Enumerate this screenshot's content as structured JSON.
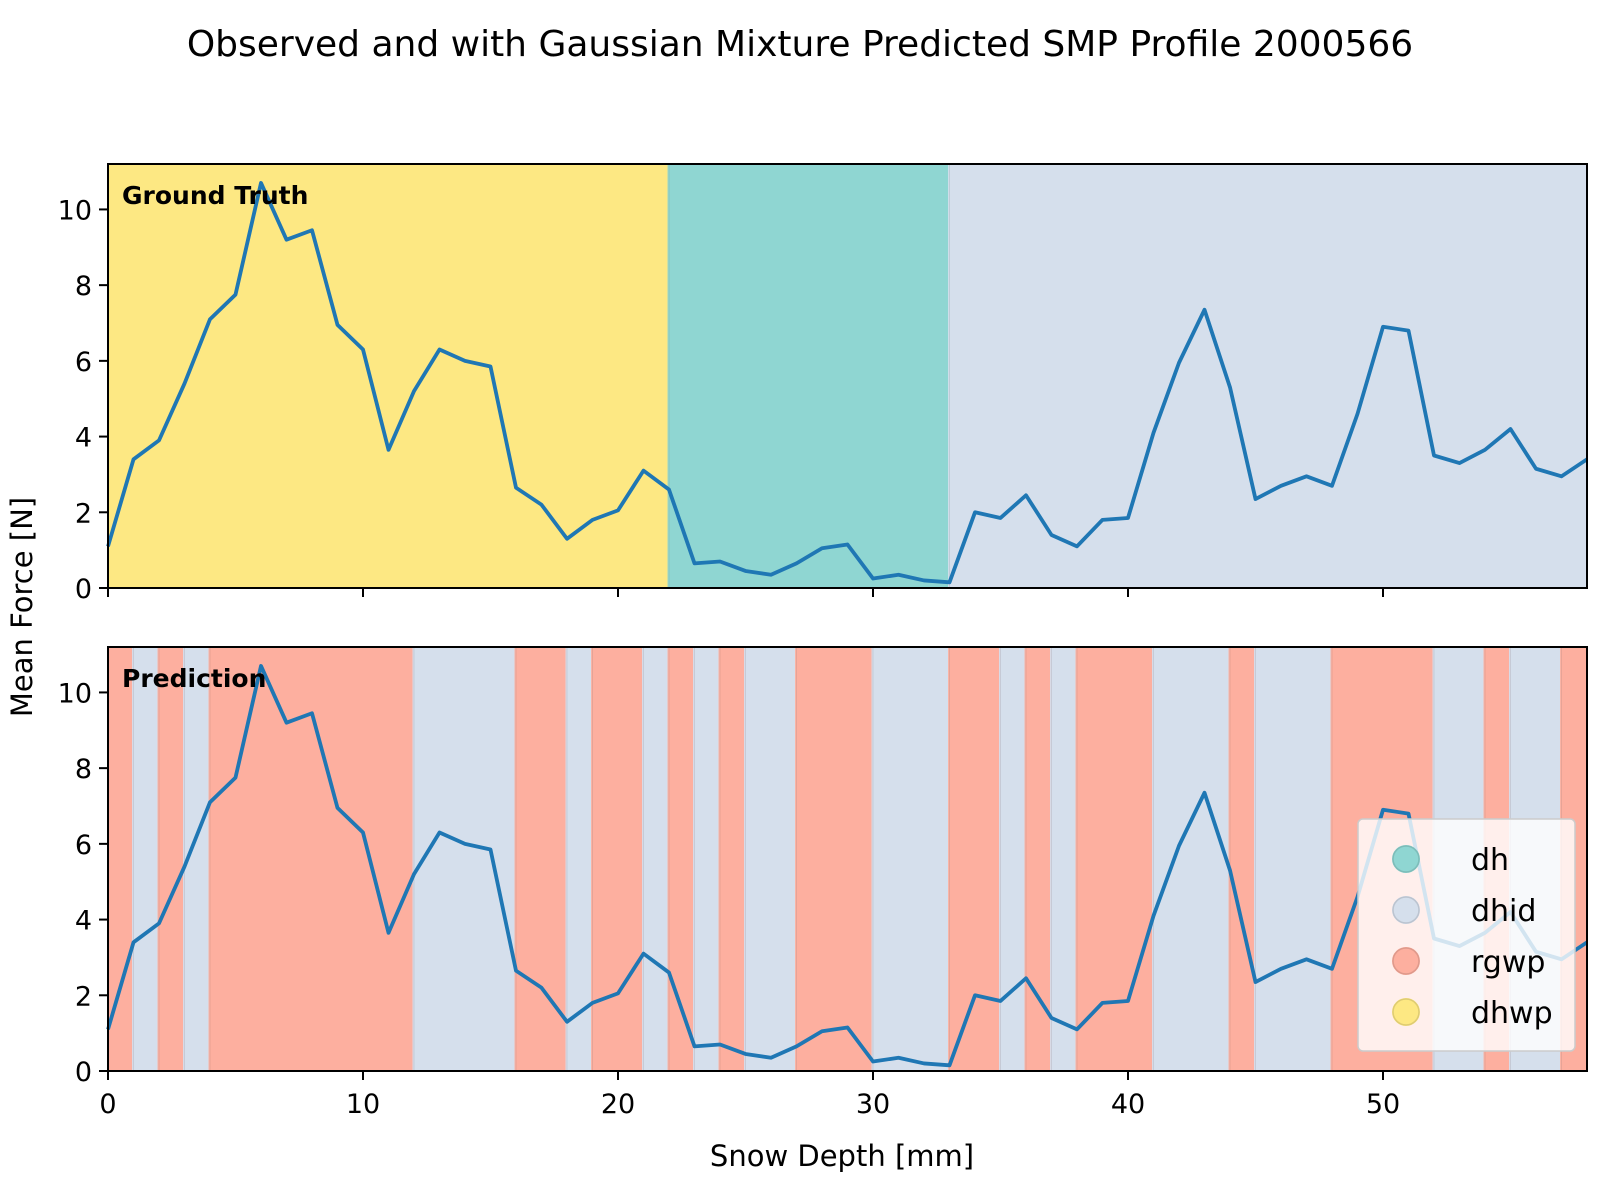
{
  "figure": {
    "title": "Observed and with Gaussian Mixture Predicted SMP Profile 2000566"
  },
  "colors": {
    "dh": "#8fd6d2",
    "dhid": "#d5dfec",
    "rgwp": "#fdaf9f",
    "dhwp": "#fde883",
    "line": "#1f77b4"
  },
  "chart_data": {
    "type": "line",
    "xlabel": "Snow Depth [mm]",
    "ylabel": "Mean Force [N]",
    "xlim": [
      0,
      58
    ],
    "ylim": [
      0,
      11.2
    ],
    "xticks": [
      0,
      10,
      20,
      30,
      40,
      50
    ],
    "yticks": [
      0,
      2,
      4,
      6,
      8,
      10
    ],
    "x": [
      0,
      1,
      2,
      3,
      4,
      5,
      6,
      7,
      8,
      9,
      10,
      11,
      12,
      13,
      14,
      15,
      16,
      17,
      18,
      19,
      20,
      21,
      22,
      23,
      24,
      25,
      26,
      27,
      28,
      29,
      30,
      31,
      32,
      33,
      34,
      35,
      36,
      37,
      38,
      39,
      40,
      41,
      42,
      43,
      44,
      45,
      46,
      47,
      48,
      49,
      50,
      51,
      52,
      53,
      54,
      55,
      56,
      57,
      58
    ],
    "y": [
      1.1,
      3.4,
      3.9,
      5.4,
      7.1,
      7.75,
      10.7,
      9.2,
      9.45,
      6.95,
      6.3,
      3.65,
      5.2,
      6.3,
      6.0,
      5.85,
      2.65,
      2.2,
      1.3,
      1.8,
      2.05,
      3.1,
      2.6,
      0.65,
      0.7,
      0.45,
      0.35,
      0.65,
      1.05,
      1.15,
      0.25,
      0.35,
      0.2,
      0.15,
      2.0,
      1.85,
      2.45,
      1.4,
      1.1,
      1.8,
      1.85,
      4.1,
      5.95,
      7.35,
      5.3,
      2.35,
      2.7,
      2.95,
      2.7,
      4.6,
      6.9,
      6.8,
      3.5,
      3.3,
      3.65,
      4.2,
      3.15,
      2.95,
      3.4
    ],
    "panels": [
      {
        "label": "Ground Truth",
        "segments": [
          {
            "start": 0,
            "end": 22,
            "label": "dhwp"
          },
          {
            "start": 22,
            "end": 33,
            "label": "dh"
          },
          {
            "start": 33,
            "end": 58,
            "label": "dhid"
          }
        ]
      },
      {
        "label": "Prediction",
        "segments": [
          {
            "start": 0,
            "end": 1,
            "label": "rgwp"
          },
          {
            "start": 1,
            "end": 2,
            "label": "dhid"
          },
          {
            "start": 2,
            "end": 3,
            "label": "rgwp"
          },
          {
            "start": 3,
            "end": 4,
            "label": "dhid"
          },
          {
            "start": 4,
            "end": 12,
            "label": "rgwp"
          },
          {
            "start": 12,
            "end": 16,
            "label": "dhid"
          },
          {
            "start": 16,
            "end": 18,
            "label": "rgwp"
          },
          {
            "start": 18,
            "end": 19,
            "label": "dhid"
          },
          {
            "start": 19,
            "end": 21,
            "label": "rgwp"
          },
          {
            "start": 21,
            "end": 22,
            "label": "dhid"
          },
          {
            "start": 22,
            "end": 23,
            "label": "rgwp"
          },
          {
            "start": 23,
            "end": 24,
            "label": "dhid"
          },
          {
            "start": 24,
            "end": 25,
            "label": "rgwp"
          },
          {
            "start": 25,
            "end": 27,
            "label": "dhid"
          },
          {
            "start": 27,
            "end": 30,
            "label": "rgwp"
          },
          {
            "start": 30,
            "end": 33,
            "label": "dhid"
          },
          {
            "start": 33,
            "end": 35,
            "label": "rgwp"
          },
          {
            "start": 35,
            "end": 36,
            "label": "dhid"
          },
          {
            "start": 36,
            "end": 37,
            "label": "rgwp"
          },
          {
            "start": 37,
            "end": 38,
            "label": "dhid"
          },
          {
            "start": 38,
            "end": 41,
            "label": "rgwp"
          },
          {
            "start": 41,
            "end": 44,
            "label": "dhid"
          },
          {
            "start": 44,
            "end": 45,
            "label": "rgwp"
          },
          {
            "start": 45,
            "end": 48,
            "label": "dhid"
          },
          {
            "start": 48,
            "end": 52,
            "label": "rgwp"
          },
          {
            "start": 52,
            "end": 54,
            "label": "dhid"
          },
          {
            "start": 54,
            "end": 55,
            "label": "rgwp"
          },
          {
            "start": 55,
            "end": 57,
            "label": "dhid"
          },
          {
            "start": 57,
            "end": 58,
            "label": "rgwp"
          }
        ]
      }
    ],
    "legend": {
      "position": "lower-right",
      "entries": [
        "dh",
        "dhid",
        "rgwp",
        "dhwp"
      ]
    }
  }
}
